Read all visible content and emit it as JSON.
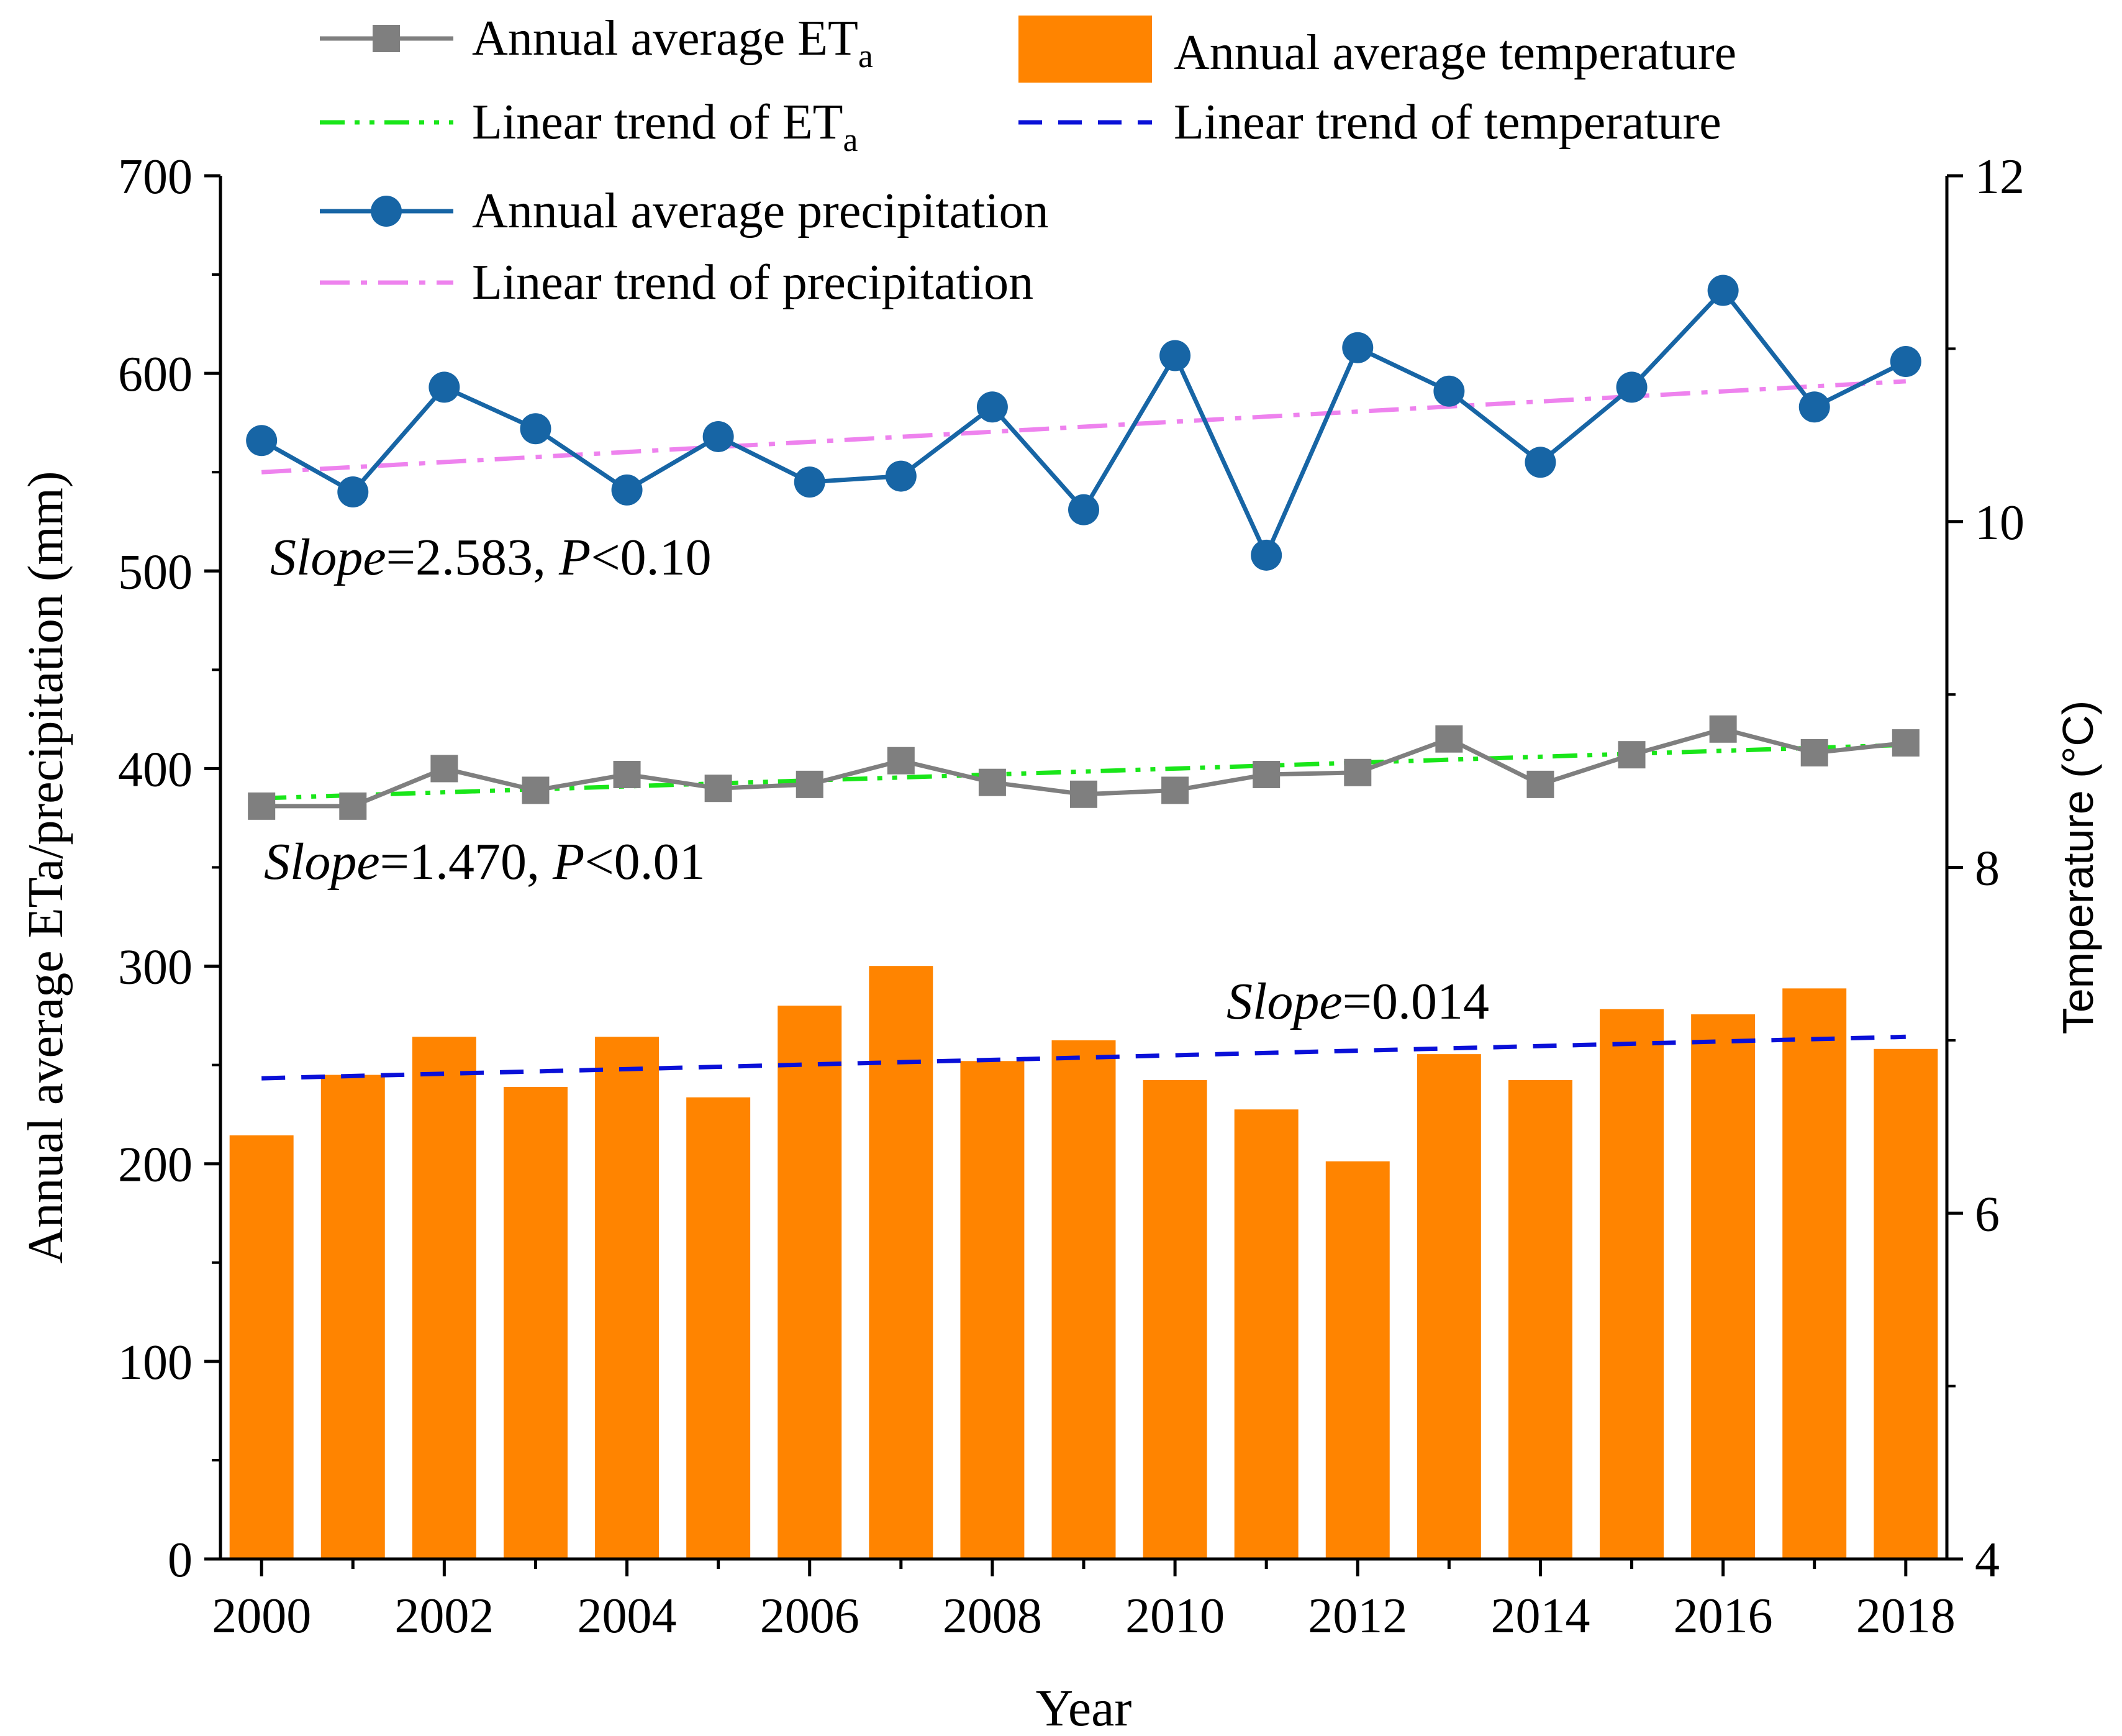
{
  "chart_data": {
    "type": "bar+line",
    "xlabel": "Year",
    "ylabel_left": "Annual average ETa/precipitation (mm)",
    "ylabel_right": "Temperature (°C)",
    "x_range": [
      1999.55,
      2018.45
    ],
    "ylim_left": [
      0,
      700
    ],
    "ylim_right": [
      4,
      12
    ],
    "x_ticks": [
      2000,
      2002,
      2004,
      2006,
      2008,
      2010,
      2012,
      2014,
      2016,
      2018
    ],
    "x_tick_labels": [
      "2000",
      "2002",
      "2004",
      "2006",
      "2008",
      "2010",
      "2012",
      "2014",
      "2016",
      "2018"
    ],
    "y_left_ticks": [
      0,
      100,
      200,
      300,
      400,
      500,
      600,
      700
    ],
    "y_left_tick_labels": [
      "0",
      "100",
      "200",
      "300",
      "400",
      "500",
      "600",
      "700"
    ],
    "y_right_ticks": [
      4,
      6,
      8,
      10,
      12
    ],
    "y_right_tick_labels": [
      "4",
      "6",
      "8",
      "10",
      "12"
    ],
    "years": [
      2000,
      2001,
      2002,
      2003,
      2004,
      2005,
      2006,
      2007,
      2008,
      2009,
      2010,
      2011,
      2012,
      2013,
      2014,
      2015,
      2016,
      2017,
      2018
    ],
    "colors": {
      "eta": "#7f7f7f",
      "eta_trend": "#19e619",
      "precip": "#1765a5",
      "precip_trend": "#ee82ee",
      "temp": "#ff8400",
      "temp_trend": "#0a10d8",
      "axis": "#000000"
    },
    "series": [
      {
        "name": "Annual average temperature",
        "kind": "bar",
        "axis": "right",
        "values": [
          6.45,
          6.8,
          7.02,
          6.73,
          7.02,
          6.67,
          7.2,
          7.43,
          6.88,
          7.0,
          6.77,
          6.6,
          6.3,
          6.92,
          6.77,
          7.18,
          7.15,
          7.3,
          6.95
        ]
      },
      {
        "name": "Annual average ETa",
        "kind": "line-square",
        "axis": "left",
        "values": [
          381,
          381,
          400,
          389,
          397,
          390,
          392,
          404,
          393,
          387,
          389,
          397,
          398,
          415,
          392,
          407,
          420,
          408,
          413
        ]
      },
      {
        "name": "Annual average precipitation",
        "kind": "line-circle",
        "axis": "left",
        "values": [
          566,
          540,
          593,
          572,
          541,
          568,
          545,
          548,
          583,
          531,
          609,
          508,
          613,
          591,
          555,
          593,
          642,
          583,
          606
        ]
      },
      {
        "name": "Linear trend of ETa",
        "kind": "trend",
        "axis": "left",
        "x": [
          2000,
          2018
        ],
        "values": [
          385,
          412
        ]
      },
      {
        "name": "Linear trend of precipitation",
        "kind": "trend",
        "axis": "left",
        "x": [
          2000,
          2018
        ],
        "values": [
          550,
          596
        ]
      },
      {
        "name": "Linear trend of temperature",
        "kind": "trend",
        "axis": "right",
        "x": [
          2000,
          2018
        ],
        "values": [
          6.78,
          7.02
        ]
      }
    ],
    "legend": [
      {
        "label": "Annual average ET",
        "sub": "a",
        "key": "eta"
      },
      {
        "label": "Annual average temperature",
        "sub": "",
        "key": "temp"
      },
      {
        "label": "Linear trend of ET",
        "sub": "a",
        "key": "eta_trend"
      },
      {
        "label": "Linear trend of temperature",
        "sub": "",
        "key": "temp_trend"
      },
      {
        "label": "Annual average precipitation",
        "sub": "",
        "key": "precip"
      },
      {
        "label": "Linear trend of precipitation",
        "sub": "",
        "key": "precip_trend"
      }
    ],
    "legend_placement": "top-left",
    "annotations": [
      {
        "key": "precip_slope",
        "italic": "Slope",
        "text": "=2.583, ",
        "italic2": "P",
        "text2": "<0.10"
      },
      {
        "key": "eta_slope",
        "italic": "Slope",
        "text": "=1.470, ",
        "italic2": "P",
        "text2": "<0.01"
      },
      {
        "key": "temp_slope",
        "italic": "Slope",
        "text": "=0.014",
        "italic2": "",
        "text2": ""
      }
    ]
  }
}
